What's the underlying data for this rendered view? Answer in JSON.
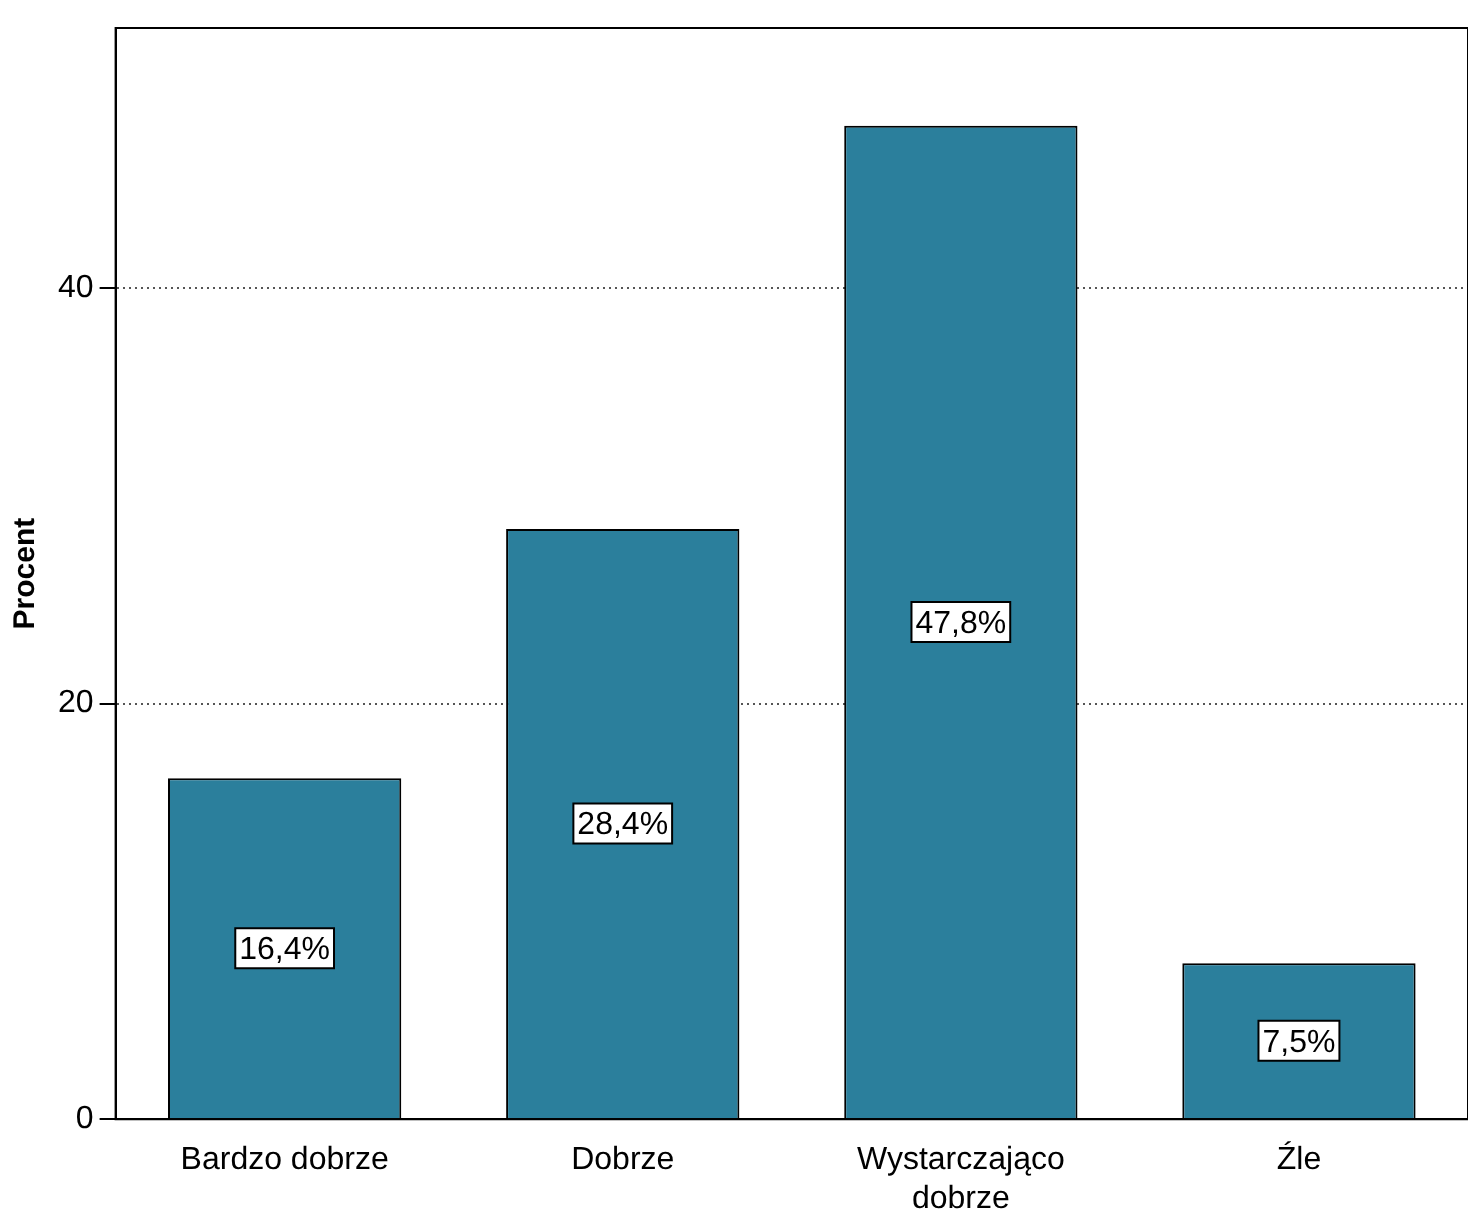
{
  "chart_data": {
    "type": "bar",
    "ylabel": "Procent",
    "categories": [
      "Bardzo dobrze",
      "Dobrze",
      "Wystarczająco dobrze",
      "Źle"
    ],
    "values": [
      16.4,
      28.4,
      47.8,
      7.5
    ],
    "value_labels": [
      "16,4%",
      "28,4%",
      "47,8%",
      "7,5%"
    ],
    "color": "#2b7f9c",
    "ylim": [
      0,
      52.5
    ],
    "yticks": [
      0,
      20,
      40
    ],
    "grid": "y",
    "legend": false
  }
}
